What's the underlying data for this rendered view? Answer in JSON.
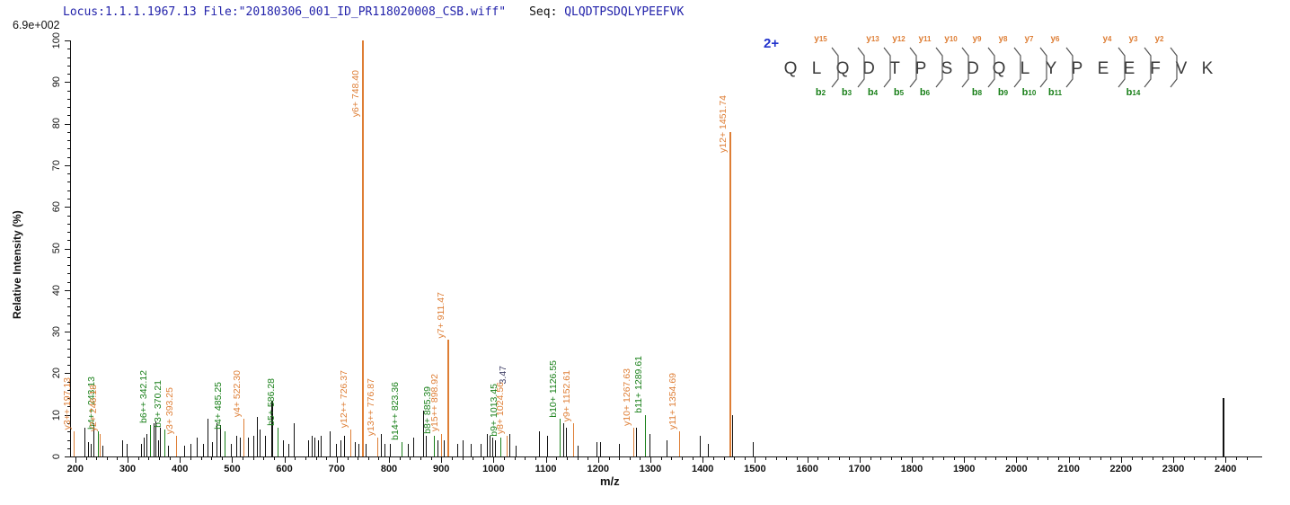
{
  "header": {
    "locus_file": "Locus:1.1.1.1967.13 File:\"20180306_001_ID_PR118020008_CSB.wiff\"",
    "seq_label": "Seq:",
    "seq_value": "QLQDTPSDQLYPEEFVK",
    "base_intensity": "6.9e+002"
  },
  "colors": {
    "y_ion": "#de7e35",
    "b_ion": "#1a801a",
    "unassigned_peak": "#111111",
    "partial_label": "#3f3f66",
    "header_blue": "#2222aa",
    "charge_blue": "#2233cc"
  },
  "peptide": {
    "charge": "2+",
    "residues": [
      "Q",
      "L",
      "Q",
      "D",
      "T",
      "P",
      "S",
      "D",
      "Q",
      "L",
      "Y",
      "P",
      "E",
      "E",
      "F",
      "V",
      "K"
    ],
    "cleavages": [
      {
        "after": 2,
        "y": "y15",
        "b": "b2"
      },
      {
        "after": 3,
        "y": "",
        "b": "b3"
      },
      {
        "after": 4,
        "y": "y13",
        "b": "b4"
      },
      {
        "after": 5,
        "y": "y12",
        "b": "b5"
      },
      {
        "after": 6,
        "y": "y11",
        "b": "b6"
      },
      {
        "after": 7,
        "y": "y10",
        "b": ""
      },
      {
        "after": 8,
        "y": "y9",
        "b": "b8"
      },
      {
        "after": 9,
        "y": "y8",
        "b": "b9"
      },
      {
        "after": 10,
        "y": "y7",
        "b": "b10"
      },
      {
        "after": 11,
        "y": "y6",
        "b": "b11"
      },
      {
        "after": 13,
        "y": "y4",
        "b": ""
      },
      {
        "after": 14,
        "y": "y3",
        "b": "b14"
      },
      {
        "after": 15,
        "y": "y2",
        "b": ""
      }
    ]
  },
  "chart_data": {
    "type": "bar",
    "subtype": "ms2-stick-spectrum",
    "title": "",
    "xlabel": "m/z",
    "ylabel": "Relative  Intensity (%)",
    "xlim": [
      190,
      2450
    ],
    "ylim": [
      0,
      100
    ],
    "grid": false,
    "legend": "none",
    "base_peak_intensity": "6.9e+002",
    "x_ticks": [
      200,
      300,
      400,
      500,
      600,
      700,
      800,
      900,
      1000,
      1100,
      1200,
      1300,
      1400,
      1500,
      1600,
      1700,
      1800,
      1900,
      2000,
      2100,
      2200,
      2300,
      2400
    ],
    "y_ticks": [
      0,
      10,
      20,
      30,
      40,
      50,
      60,
      70,
      80,
      90,
      100
    ],
    "peaks": [
      {
        "mz": 197.13,
        "intensity": 6,
        "ion": "y",
        "label": "y3++ 197.13"
      },
      {
        "mz": 218,
        "intensity": 7
      },
      {
        "mz": 224,
        "intensity": 3.5
      },
      {
        "mz": 229,
        "intensity": 3
      },
      {
        "mz": 234,
        "intensity": 8
      },
      {
        "mz": 243.13,
        "intensity": 6,
        "ion": "b",
        "label": "b4++ 243.13"
      },
      {
        "mz": 246.18,
        "intensity": 5.5,
        "ion": "y",
        "label": "y2+ 246.18"
      },
      {
        "mz": 251,
        "intensity": 2.5
      },
      {
        "mz": 290,
        "intensity": 4
      },
      {
        "mz": 299,
        "intensity": 3
      },
      {
        "mz": 325,
        "intensity": 3
      },
      {
        "mz": 331,
        "intensity": 4.5
      },
      {
        "mz": 336,
        "intensity": 5.5
      },
      {
        "mz": 342.12,
        "intensity": 7.5,
        "ion": "b",
        "label": "b6++ 342.12"
      },
      {
        "mz": 349,
        "intensity": 8
      },
      {
        "mz": 353,
        "intensity": 8.5
      },
      {
        "mz": 358,
        "intensity": 4
      },
      {
        "mz": 362,
        "intensity": 7
      },
      {
        "mz": 370.21,
        "intensity": 6.5,
        "ion": "b",
        "label": "b3+ 370.21"
      },
      {
        "mz": 377,
        "intensity": 2.5
      },
      {
        "mz": 393.25,
        "intensity": 5,
        "ion": "y",
        "label": "y3+ 393.25"
      },
      {
        "mz": 408,
        "intensity": 2.5
      },
      {
        "mz": 421,
        "intensity": 3
      },
      {
        "mz": 433,
        "intensity": 4.5
      },
      {
        "mz": 445,
        "intensity": 3
      },
      {
        "mz": 453,
        "intensity": 9
      },
      {
        "mz": 462,
        "intensity": 3.5
      },
      {
        "mz": 470,
        "intensity": 8
      },
      {
        "mz": 476,
        "intensity": 7.5
      },
      {
        "mz": 485.25,
        "intensity": 6,
        "ion": "b",
        "label": "b4+ 485.25"
      },
      {
        "mz": 497,
        "intensity": 3
      },
      {
        "mz": 507,
        "intensity": 5
      },
      {
        "mz": 514,
        "intensity": 4.5
      },
      {
        "mz": 522.3,
        "intensity": 9,
        "ion": "y",
        "label": "y4+ 522.30"
      },
      {
        "mz": 530,
        "intensity": 4.5
      },
      {
        "mz": 541,
        "intensity": 5
      },
      {
        "mz": 548,
        "intensity": 9.5
      },
      {
        "mz": 553,
        "intensity": 6.5
      },
      {
        "mz": 563,
        "intensity": 5
      },
      {
        "mz": 575,
        "intensity": 13.5
      },
      {
        "mz": 586.28,
        "intensity": 7,
        "ion": "b",
        "label": "b5+ 586.28"
      },
      {
        "mz": 597,
        "intensity": 4
      },
      {
        "mz": 607,
        "intensity": 3
      },
      {
        "mz": 618,
        "intensity": 8
      },
      {
        "mz": 645,
        "intensity": 4
      },
      {
        "mz": 652,
        "intensity": 5
      },
      {
        "mz": 658,
        "intensity": 4.5
      },
      {
        "mz": 664,
        "intensity": 4
      },
      {
        "mz": 669,
        "intensity": 5
      },
      {
        "mz": 687,
        "intensity": 6
      },
      {
        "mz": 699,
        "intensity": 3
      },
      {
        "mz": 707,
        "intensity": 4
      },
      {
        "mz": 714,
        "intensity": 5
      },
      {
        "mz": 726.37,
        "intensity": 6.5,
        "ion": "y",
        "label": "y12++ 726.37"
      },
      {
        "mz": 735,
        "intensity": 3.5
      },
      {
        "mz": 742,
        "intensity": 3
      },
      {
        "mz": 748.4,
        "intensity": 100,
        "ion": "y",
        "label": "y6+ 748.40"
      },
      {
        "mz": 755,
        "intensity": 3
      },
      {
        "mz": 776.87,
        "intensity": 4.5,
        "ion": "y",
        "label": "y13++ 776.87"
      },
      {
        "mz": 785,
        "intensity": 5.5
      },
      {
        "mz": 791,
        "intensity": 3
      },
      {
        "mz": 801,
        "intensity": 3
      },
      {
        "mz": 823.36,
        "intensity": 3.5,
        "ion": "b",
        "label": "b14++ 823.36"
      },
      {
        "mz": 836,
        "intensity": 3
      },
      {
        "mz": 846,
        "intensity": 4.5
      },
      {
        "mz": 865,
        "intensity": 11
      },
      {
        "mz": 871,
        "intensity": 5
      },
      {
        "mz": 885.39,
        "intensity": 5,
        "ion": "b",
        "label": "b8+ 885.39"
      },
      {
        "mz": 893,
        "intensity": 4
      },
      {
        "mz": 898.92,
        "intensity": 5.5,
        "ion": "y",
        "label": "y15++ 898.92"
      },
      {
        "mz": 905,
        "intensity": 4
      },
      {
        "mz": 911.47,
        "intensity": 28,
        "ion": "y",
        "label": "y7+ 911.47"
      },
      {
        "mz": 930,
        "intensity": 3
      },
      {
        "mz": 940,
        "intensity": 4
      },
      {
        "mz": 957,
        "intensity": 3
      },
      {
        "mz": 975,
        "intensity": 3
      },
      {
        "mz": 988,
        "intensity": 5.5
      },
      {
        "mz": 993,
        "intensity": 5
      },
      {
        "mz": 998,
        "intensity": 4.5
      },
      {
        "mz": 1003,
        "intensity": 4
      },
      {
        "mz": 1013.45,
        "intensity": 4.5,
        "ion": "b",
        "label": "b9+ 1013.45"
      },
      {
        "mz": 1024.56,
        "intensity": 5,
        "ion": "y",
        "label": "y8+ 1024.56"
      },
      {
        "mz": 1030,
        "intensity": 5.5,
        "ion": "partial",
        "label": "3.47"
      },
      {
        "mz": 1043,
        "intensity": 2.5
      },
      {
        "mz": 1086,
        "intensity": 6
      },
      {
        "mz": 1103,
        "intensity": 5
      },
      {
        "mz": 1126.55,
        "intensity": 9,
        "ion": "b",
        "label": "b10+ 1126.55"
      },
      {
        "mz": 1133,
        "intensity": 8
      },
      {
        "mz": 1139,
        "intensity": 7
      },
      {
        "mz": 1152.61,
        "intensity": 8,
        "ion": "y",
        "label": "y9+ 1152.61"
      },
      {
        "mz": 1160,
        "intensity": 2.5
      },
      {
        "mz": 1197,
        "intensity": 3.5
      },
      {
        "mz": 1203,
        "intensity": 3.5
      },
      {
        "mz": 1240,
        "intensity": 3
      },
      {
        "mz": 1267.63,
        "intensity": 7,
        "ion": "y",
        "label": "y10+ 1267.63"
      },
      {
        "mz": 1272,
        "intensity": 7
      },
      {
        "mz": 1289.61,
        "intensity": 10,
        "ion": "b",
        "label": "b11+ 1289.61"
      },
      {
        "mz": 1299,
        "intensity": 5.5
      },
      {
        "mz": 1331,
        "intensity": 4
      },
      {
        "mz": 1354.69,
        "intensity": 6,
        "ion": "y",
        "label": "y11+ 1354.69"
      },
      {
        "mz": 1395,
        "intensity": 5
      },
      {
        "mz": 1410,
        "intensity": 3
      },
      {
        "mz": 1451.74,
        "intensity": 78,
        "ion": "y",
        "label": "y12+ 1451.74"
      },
      {
        "mz": 1456,
        "intensity": 10
      },
      {
        "mz": 1495,
        "intensity": 3.5
      },
      {
        "mz": 2395,
        "intensity": 14
      }
    ]
  }
}
